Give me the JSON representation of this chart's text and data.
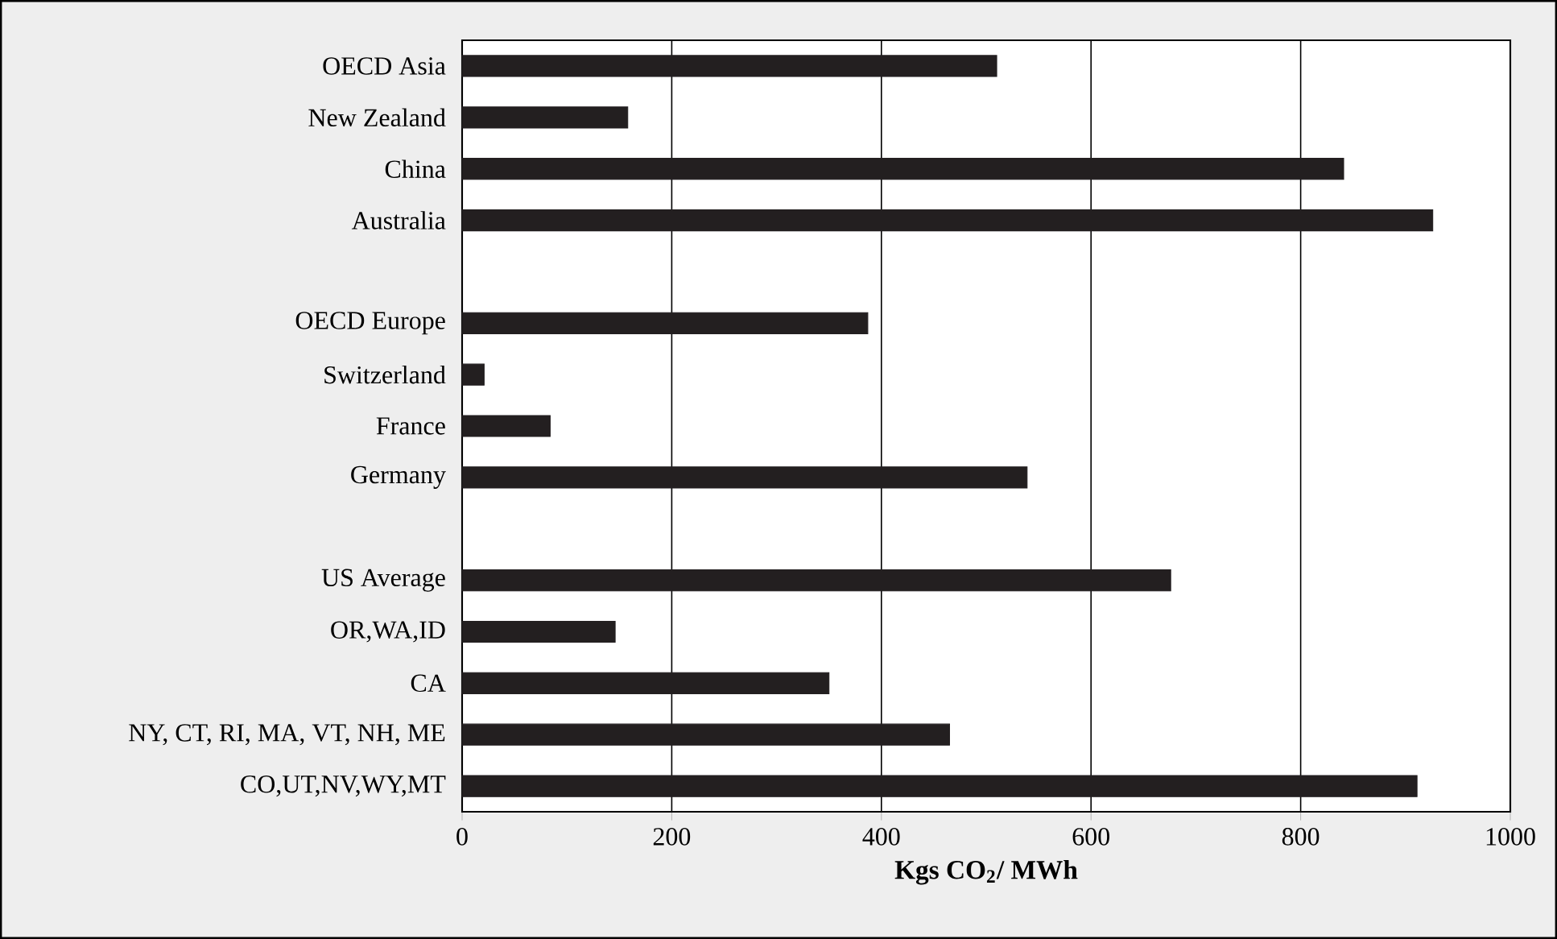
{
  "chart_data": {
    "type": "bar",
    "orientation": "horizontal",
    "xlabel": "**Kgs CO$_{2}$/ MWh**",
    "categories": [
      "OECD Asia",
      "New Zealand",
      "China",
      "Australia",
      null,
      "OECD Europe",
      "Switzerland",
      "France",
      "Germany",
      null,
      "US Average",
      "OR,WA,ID",
      "CA",
      "NY, CT, RI, MA, VT, NH, ME",
      "CO,UT,NV,WY,MT"
    ],
    "values": [
      510,
      158,
      841,
      926,
      null,
      387,
      21,
      84,
      539,
      null,
      676,
      146,
      350,
      465,
      911
    ],
    "color": "#231f20",
    "xlim": [
      0,
      1000
    ],
    "xticks": [
      0,
      200,
      400,
      600,
      800,
      1000
    ],
    "grid": "x"
  }
}
